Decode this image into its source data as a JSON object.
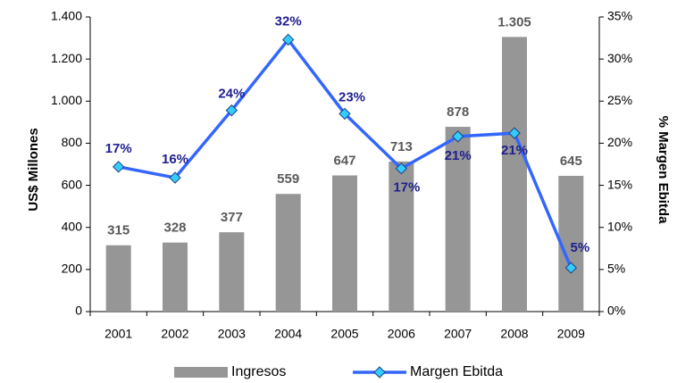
{
  "chart_data": {
    "type": "bar",
    "categories": [
      "2001",
      "2002",
      "2003",
      "2004",
      "2005",
      "2006",
      "2007",
      "2008",
      "2009"
    ],
    "series": [
      {
        "name": "Ingresos",
        "type": "bar",
        "axis": "y",
        "color": "#969696",
        "values": [
          315,
          328,
          377,
          559,
          647,
          713,
          878,
          1305,
          645
        ],
        "value_labels": [
          "315",
          "328",
          "377",
          "559",
          "647",
          "713",
          "878",
          "1.305",
          "645"
        ]
      },
      {
        "name": "Margen Ebitda",
        "type": "line",
        "axis": "y2",
        "color": "#3366ff",
        "marker_color": "#33ccff",
        "values": [
          17.2,
          15.9,
          23.9,
          32.3,
          23.5,
          17.0,
          20.8,
          21.2,
          5.2
        ],
        "value_labels": [
          "17%",
          "16%",
          "24%",
          "32%",
          "23%",
          "17%",
          "21%",
          "21%",
          "5%"
        ]
      }
    ],
    "ylabel": "US$ Millones",
    "y2label": "% Margen Ebitda",
    "ylim": [
      0,
      1400
    ],
    "yticks": [
      0,
      200,
      400,
      600,
      800,
      {
        "value": 1000,
        "label": "1.000"
      },
      {
        "value": 1200,
        "label": "1.200"
      },
      {
        "value": 1400,
        "label": "1.400"
      }
    ],
    "y2lim": [
      0,
      35
    ],
    "y2ticks": [
      {
        "value": 0,
        "label": "0%"
      },
      {
        "value": 5,
        "label": "5%"
      },
      {
        "value": 10,
        "label": "10%"
      },
      {
        "value": 15,
        "label": "15%"
      },
      {
        "value": 20,
        "label": "20%"
      },
      {
        "value": 25,
        "label": "25%"
      },
      {
        "value": 30,
        "label": "30%"
      },
      {
        "value": 35,
        "label": "35%"
      }
    ],
    "legend": "bottom"
  }
}
